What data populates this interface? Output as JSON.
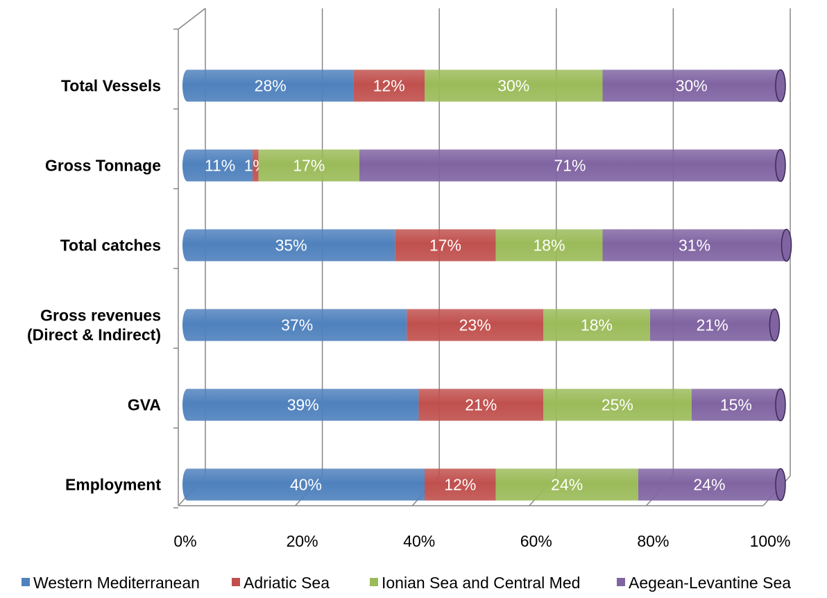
{
  "chart_data": {
    "type": "bar",
    "orientation": "horizontal",
    "stacked": "percent",
    "style": "3d-cylinder",
    "categories": [
      "Total Vessels",
      "Gross Tonnage",
      "Total catches",
      "Gross revenues\n(Direct & Indirect)",
      "GVA",
      "Employment"
    ],
    "series": [
      {
        "name": "Western Mediterranean",
        "color": "#4f81bd",
        "values": [
          28,
          11,
          35,
          37,
          39,
          40
        ]
      },
      {
        "name": "Adriatic Sea",
        "color": "#c0504d",
        "values": [
          12,
          1,
          17,
          23,
          21,
          12
        ]
      },
      {
        "name": "Ionian Sea and Central Med",
        "color": "#9bbb59",
        "values": [
          30,
          17,
          18,
          18,
          25,
          24
        ]
      },
      {
        "name": "Aegean-Levantine Sea",
        "color": "#8064a2",
        "values": [
          30,
          71,
          31,
          21,
          15,
          24
        ]
      }
    ],
    "xticks": [
      "0%",
      "20%",
      "40%",
      "60%",
      "80%",
      "100%"
    ],
    "xlim": [
      0,
      100
    ],
    "grid": "vertical",
    "legend": "bottom"
  }
}
